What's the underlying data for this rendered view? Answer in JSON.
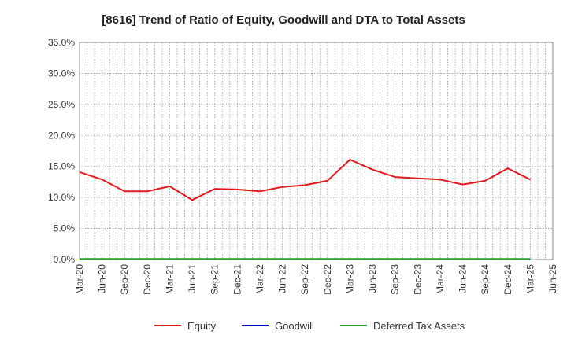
{
  "chart_data": {
    "type": "line",
    "title": "[8616]  Trend of Ratio of Equity, Goodwill and DTA to Total Assets",
    "xlabel": "",
    "ylabel": "",
    "ylim": [
      0,
      35
    ],
    "yticks": [
      0,
      5,
      10,
      15,
      20,
      25,
      30,
      35
    ],
    "ytick_labels": [
      "0.0%",
      "5.0%",
      "10.0%",
      "15.0%",
      "20.0%",
      "25.0%",
      "30.0%",
      "35.0%"
    ],
    "x": [
      "Mar-20",
      "Jun-20",
      "Sep-20",
      "Dec-20",
      "Mar-21",
      "Jun-21",
      "Sep-21",
      "Dec-21",
      "Mar-22",
      "Jun-22",
      "Sep-22",
      "Dec-22",
      "Mar-23",
      "Jun-23",
      "Sep-23",
      "Dec-23",
      "Mar-24",
      "Jun-24",
      "Sep-24",
      "Dec-24",
      "Mar-25",
      "Jun-25"
    ],
    "grid": true,
    "legend_position": "bottom",
    "series": [
      {
        "name": "Equity",
        "color": "#e31a1c",
        "values": [
          14.1,
          12.9,
          11.0,
          11.0,
          11.8,
          9.6,
          11.4,
          11.3,
          11.0,
          11.7,
          12.0,
          12.7,
          16.1,
          14.5,
          13.3,
          13.1,
          12.9,
          12.1,
          12.7,
          14.7,
          12.9,
          null
        ]
      },
      {
        "name": "Goodwill",
        "color": "#0000cc",
        "values": [
          0,
          0,
          0,
          0,
          0,
          0,
          0,
          0,
          0,
          0,
          0,
          0,
          0,
          0,
          0,
          0,
          0,
          0,
          0,
          0,
          0,
          null
        ]
      },
      {
        "name": "Deferred Tax Assets",
        "color": "#2ca02c",
        "values": [
          0.1,
          0.1,
          0.1,
          0.1,
          0.1,
          0.1,
          0.1,
          0.1,
          0.1,
          0.1,
          0.1,
          0.1,
          0.1,
          0.1,
          0.1,
          0.1,
          0.1,
          0.1,
          0.1,
          0.1,
          0.1,
          null
        ]
      }
    ]
  }
}
